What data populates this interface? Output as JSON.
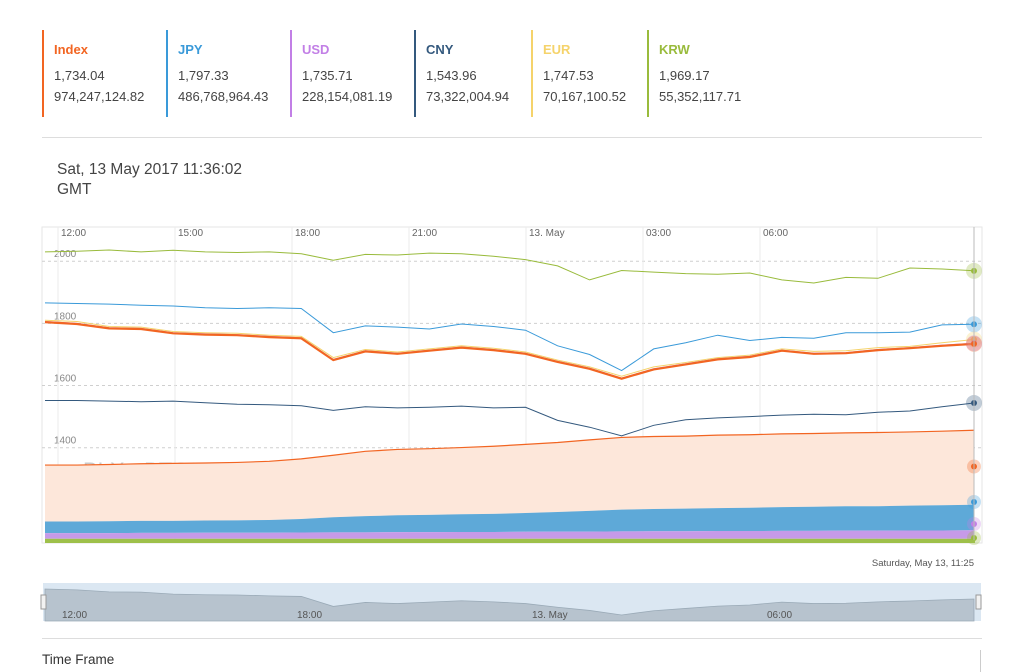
{
  "legend": [
    {
      "name": "Index",
      "price": "1,734.04",
      "volume": "974,247,124.82",
      "color": "#f26522"
    },
    {
      "name": "JPY",
      "price": "1,797.33",
      "volume": "486,768,964.43",
      "color": "#3a9ad9"
    },
    {
      "name": "USD",
      "price": "1,735.71",
      "volume": "228,154,081.19",
      "color": "#c27fe6"
    },
    {
      "name": "CNY",
      "price": "1,543.96",
      "volume": "73,322,004.94",
      "color": "#34597e"
    },
    {
      "name": "EUR",
      "price": "1,747.53",
      "volume": "70,167,100.52",
      "color": "#f5d36b"
    },
    {
      "name": "KRW",
      "price": "1,969.17",
      "volume": "55,352,117.71",
      "color": "#99bb3c"
    }
  ],
  "timestamp": {
    "line1": "Sat, 13 May 2017 11:36:02",
    "line2": "GMT"
  },
  "chart_data": {
    "type": "line",
    "watermark": "BLX - BTC",
    "x_tick_labels": [
      "12:00",
      "15:00",
      "18:00",
      "21:00",
      "13. May",
      "03:00",
      "06:00"
    ],
    "navigator_tick_labels": [
      "12:00",
      "18:00",
      "13. May",
      "06:00"
    ],
    "y_tick_labels": [
      "2000",
      "1800",
      "1600",
      "1400"
    ],
    "ylim": [
      1100,
      2110
    ],
    "grid": true,
    "tooltip_date": "Saturday, May 13, 11:25",
    "series": [
      {
        "name": "KRW",
        "values": [
          2030,
          2032,
          2036,
          2030,
          2035,
          2030,
          2028,
          2030,
          2024,
          2003,
          2022,
          2020,
          2026,
          2024,
          2016,
          2005,
          1985,
          1940,
          1970,
          1965,
          1960,
          1958,
          1962,
          1940,
          1930,
          1948,
          1945,
          1978,
          1975,
          1969
        ]
      },
      {
        "name": "JPY",
        "values": [
          1866,
          1864,
          1862,
          1858,
          1856,
          1850,
          1848,
          1850,
          1848,
          1770,
          1792,
          1788,
          1782,
          1798,
          1790,
          1778,
          1728,
          1700,
          1648,
          1718,
          1738,
          1762,
          1745,
          1755,
          1752,
          1770,
          1770,
          1772,
          1795,
          1797
        ]
      },
      {
        "name": "EUR",
        "values": [
          1810,
          1806,
          1790,
          1788,
          1774,
          1770,
          1768,
          1762,
          1758,
          1690,
          1716,
          1708,
          1718,
          1728,
          1720,
          1708,
          1682,
          1660,
          1630,
          1660,
          1674,
          1690,
          1698,
          1718,
          1710,
          1712,
          1722,
          1726,
          1738,
          1748
        ]
      },
      {
        "name": "USD",
        "values": [
          1806,
          1800,
          1786,
          1784,
          1770,
          1766,
          1764,
          1758,
          1754,
          1684,
          1712,
          1704,
          1714,
          1724,
          1716,
          1704,
          1678,
          1656,
          1624,
          1654,
          1670,
          1686,
          1694,
          1714,
          1704,
          1706,
          1716,
          1722,
          1730,
          1736
        ]
      },
      {
        "name": "Index",
        "values": [
          1804,
          1798,
          1784,
          1782,
          1768,
          1764,
          1762,
          1756,
          1752,
          1682,
          1710,
          1702,
          1712,
          1722,
          1714,
          1702,
          1676,
          1654,
          1622,
          1652,
          1668,
          1684,
          1692,
          1712,
          1702,
          1704,
          1714,
          1720,
          1728,
          1734
        ]
      },
      {
        "name": "CNY",
        "values": [
          1552,
          1552,
          1550,
          1548,
          1550,
          1545,
          1540,
          1538,
          1535,
          1520,
          1532,
          1528,
          1530,
          1534,
          1528,
          1530,
          1488,
          1466,
          1438,
          1472,
          1490,
          1496,
          1500,
          1505,
          1508,
          1506,
          1514,
          1518,
          1532,
          1544
        ]
      }
    ],
    "volume_series": [
      {
        "name": "Index",
        "values": [
          300,
          300,
          302,
          304,
          306,
          306,
          308,
          312,
          320,
          330,
          345,
          350,
          352,
          355,
          360,
          365,
          370,
          378,
          384,
          386,
          386,
          388,
          388,
          390,
          390,
          390,
          392,
          392,
          394,
          396
        ]
      },
      {
        "name": "JPY",
        "values": [
          62,
          62,
          63,
          64,
          64,
          65,
          66,
          68,
          72,
          80,
          86,
          90,
          92,
          94,
          96,
          100,
          104,
          110,
          116,
          118,
          120,
          122,
          124,
          126,
          128,
          130,
          130,
          132,
          134,
          136
        ]
      },
      {
        "name": "USD",
        "values": [
          30,
          30,
          30,
          31,
          31,
          32,
          32,
          32,
          33,
          34,
          34,
          35,
          35,
          36,
          36,
          37,
          38,
          38,
          39,
          40,
          40,
          41,
          41,
          42,
          42,
          43,
          43,
          44,
          44,
          45
        ]
      },
      {
        "name": "KRW",
        "values": [
          12,
          12,
          12,
          12,
          12,
          12,
          12,
          12,
          12,
          12,
          12,
          12,
          12,
          12,
          12,
          12,
          12,
          12,
          12,
          12,
          12,
          12,
          12,
          12,
          12,
          12,
          12,
          12,
          12,
          12
        ]
      }
    ],
    "navigator_values": [
      1804,
      1798,
      1784,
      1782,
      1768,
      1764,
      1762,
      1756,
      1752,
      1682,
      1710,
      1702,
      1712,
      1722,
      1714,
      1702,
      1676,
      1654,
      1622,
      1652,
      1668,
      1684,
      1692,
      1712,
      1702,
      1704,
      1714,
      1720,
      1728,
      1734
    ]
  },
  "footer": {
    "time_frame_label": "Time Frame"
  }
}
